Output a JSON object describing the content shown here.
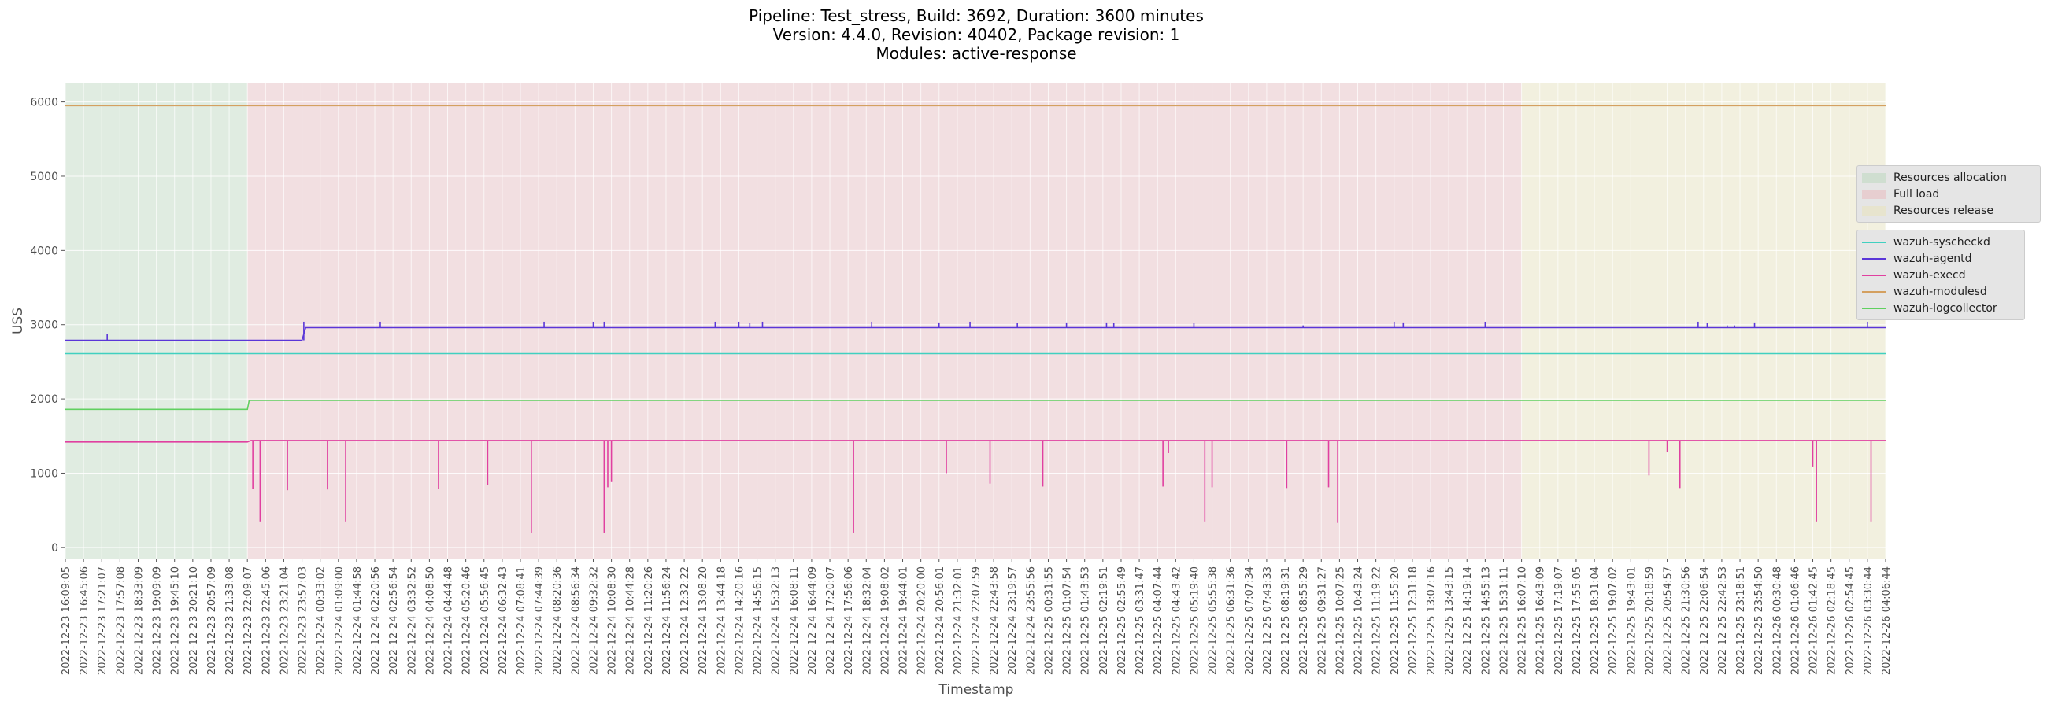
{
  "chart_data": {
    "type": "line",
    "title_lines": [
      "Pipeline: Test_stress, Build: 3692, Duration: 3600 minutes",
      "Version: 4.4.0, Revision: 40402, Package revision: 1",
      "Modules: active-response"
    ],
    "xlabel": "Timestamp",
    "ylabel": "USS",
    "ylim": [
      -150,
      6250
    ],
    "yticks": [
      0,
      1000,
      2000,
      3000,
      4000,
      5000,
      6000
    ],
    "grid": true,
    "xticks": [
      "2022-12-23 16:09:05",
      "2022-12-23 16:45:06",
      "2022-12-23 17:21:07",
      "2022-12-23 17:57:08",
      "2022-12-23 18:33:09",
      "2022-12-23 19:09:09",
      "2022-12-23 19:45:10",
      "2022-12-23 20:21:10",
      "2022-12-23 20:57:09",
      "2022-12-23 21:33:08",
      "2022-12-23 22:09:07",
      "2022-12-23 22:45:06",
      "2022-12-23 23:21:04",
      "2022-12-23 23:57:03",
      "2022-12-24 00:33:02",
      "2022-12-24 01:09:00",
      "2022-12-24 01:44:58",
      "2022-12-24 02:20:56",
      "2022-12-24 02:56:54",
      "2022-12-24 03:32:52",
      "2022-12-24 04:08:50",
      "2022-12-24 04:44:48",
      "2022-12-24 05:20:46",
      "2022-12-24 05:56:45",
      "2022-12-24 06:32:43",
      "2022-12-24 07:08:41",
      "2022-12-24 07:44:39",
      "2022-12-24 08:20:36",
      "2022-12-24 08:56:34",
      "2022-12-24 09:32:32",
      "2022-12-24 10:08:30",
      "2022-12-24 10:44:28",
      "2022-12-24 11:20:26",
      "2022-12-24 11:56:24",
      "2022-12-24 12:32:22",
      "2022-12-24 13:08:20",
      "2022-12-24 13:44:18",
      "2022-12-24 14:20:16",
      "2022-12-24 14:56:15",
      "2022-12-24 15:32:13",
      "2022-12-24 16:08:11",
      "2022-12-24 16:44:09",
      "2022-12-24 17:20:07",
      "2022-12-24 17:56:06",
      "2022-12-24 18:32:04",
      "2022-12-24 19:08:02",
      "2022-12-24 19:44:01",
      "2022-12-24 20:20:00",
      "2022-12-24 20:56:01",
      "2022-12-24 21:32:01",
      "2022-12-24 22:07:59",
      "2022-12-24 22:43:58",
      "2022-12-24 23:19:57",
      "2022-12-24 23:55:56",
      "2022-12-25 00:31:55",
      "2022-12-25 01:07:54",
      "2022-12-25 01:43:53",
      "2022-12-25 02:19:51",
      "2022-12-25 02:55:49",
      "2022-12-25 03:31:47",
      "2022-12-25 04:07:44",
      "2022-12-25 04:43:42",
      "2022-12-25 05:19:40",
      "2022-12-25 05:55:38",
      "2022-12-25 06:31:36",
      "2022-12-25 07:07:34",
      "2022-12-25 07:43:33",
      "2022-12-25 08:19:31",
      "2022-12-25 08:55:29",
      "2022-12-25 09:31:27",
      "2022-12-25 10:07:25",
      "2022-12-25 10:43:24",
      "2022-12-25 11:19:22",
      "2022-12-25 11:55:20",
      "2022-12-25 12:31:18",
      "2022-12-25 13:07:16",
      "2022-12-25 13:43:15",
      "2022-12-25 14:19:14",
      "2022-12-25 14:55:13",
      "2022-12-25 15:31:11",
      "2022-12-25 16:07:10",
      "2022-12-25 16:43:09",
      "2022-12-25 17:19:07",
      "2022-12-25 17:55:05",
      "2022-12-25 18:31:04",
      "2022-12-25 19:07:02",
      "2022-12-25 19:43:01",
      "2022-12-25 20:18:59",
      "2022-12-25 20:54:57",
      "2022-12-25 21:30:56",
      "2022-12-25 22:06:54",
      "2022-12-25 22:42:53",
      "2022-12-25 23:18:51",
      "2022-12-25 23:54:50",
      "2022-12-26 00:30:48",
      "2022-12-26 01:06:46",
      "2022-12-26 01:42:45",
      "2022-12-26 02:18:45",
      "2022-12-26 02:54:45",
      "2022-12-26 03:30:44",
      "2022-12-26 04:06:44"
    ],
    "phases": [
      {
        "name": "Resources allocation",
        "start": 0,
        "end": 10,
        "color": "#c6dcc8"
      },
      {
        "name": "Full load",
        "start": 10,
        "end": 80,
        "color": "#e8c4c8"
      },
      {
        "name": "Resources release",
        "start": 80,
        "end": 100,
        "color": "#e8e4c4"
      }
    ],
    "series": [
      {
        "name": "wazuh-syscheckd",
        "color": "#40d0c0",
        "steps": [
          [
            0,
            2610
          ],
          [
            100,
            2610
          ]
        ],
        "spikes": []
      },
      {
        "name": "wazuh-agentd",
        "color": "#5a36d8",
        "steps": [
          [
            0,
            2790
          ],
          [
            13.0,
            2790
          ],
          [
            13.2,
            2960
          ],
          [
            100,
            2960
          ]
        ],
        "spikes": [
          [
            2.3,
            2870
          ],
          [
            13.1,
            3040
          ],
          [
            17.3,
            3040
          ],
          [
            26.3,
            3040
          ],
          [
            29.0,
            3040
          ],
          [
            29.6,
            3040
          ],
          [
            35.7,
            3040
          ],
          [
            37.0,
            3040
          ],
          [
            37.6,
            3020
          ],
          [
            38.3,
            3040
          ],
          [
            44.3,
            3040
          ],
          [
            48.0,
            3030
          ],
          [
            49.7,
            3040
          ],
          [
            52.3,
            3020
          ],
          [
            55.0,
            3030
          ],
          [
            57.2,
            3030
          ],
          [
            57.6,
            3020
          ],
          [
            62.0,
            3020
          ],
          [
            68.0,
            2990
          ],
          [
            73.0,
            3040
          ],
          [
            73.5,
            3030
          ],
          [
            78.0,
            3040
          ],
          [
            89.7,
            3040
          ],
          [
            90.2,
            3020
          ],
          [
            91.3,
            2990
          ],
          [
            91.7,
            2990
          ],
          [
            92.8,
            3030
          ],
          [
            99.0,
            3040
          ]
        ]
      },
      {
        "name": "wazuh-execd",
        "color": "#e040a0",
        "steps": [
          [
            0,
            1420
          ],
          [
            10.0,
            1420
          ],
          [
            10.2,
            1440
          ],
          [
            100,
            1440
          ]
        ],
        "spikes": [
          [
            10.3,
            790
          ],
          [
            10.7,
            350
          ],
          [
            12.2,
            770
          ],
          [
            14.4,
            780
          ],
          [
            15.4,
            350
          ],
          [
            20.5,
            790
          ],
          [
            23.2,
            840
          ],
          [
            25.6,
            200
          ],
          [
            29.6,
            200
          ],
          [
            29.8,
            810
          ],
          [
            30.0,
            880
          ],
          [
            43.3,
            200
          ],
          [
            48.4,
            1000
          ],
          [
            50.8,
            860
          ],
          [
            53.7,
            820
          ],
          [
            60.3,
            820
          ],
          [
            60.6,
            1270
          ],
          [
            62.6,
            350
          ],
          [
            63.0,
            810
          ],
          [
            67.1,
            800
          ],
          [
            69.4,
            810
          ],
          [
            69.9,
            330
          ],
          [
            87.0,
            970
          ],
          [
            88.0,
            1280
          ],
          [
            88.7,
            800
          ],
          [
            96.0,
            1080
          ],
          [
            96.2,
            350
          ],
          [
            99.2,
            350
          ]
        ]
      },
      {
        "name": "wazuh-modulesd",
        "color": "#d4a060",
        "steps": [
          [
            0,
            5950
          ],
          [
            100,
            5950
          ]
        ],
        "spikes": []
      },
      {
        "name": "wazuh-logcollector",
        "color": "#60d060",
        "steps": [
          [
            0,
            1860
          ],
          [
            10.0,
            1860
          ],
          [
            10.1,
            1980
          ],
          [
            100,
            1980
          ]
        ],
        "spikes": []
      }
    ]
  }
}
